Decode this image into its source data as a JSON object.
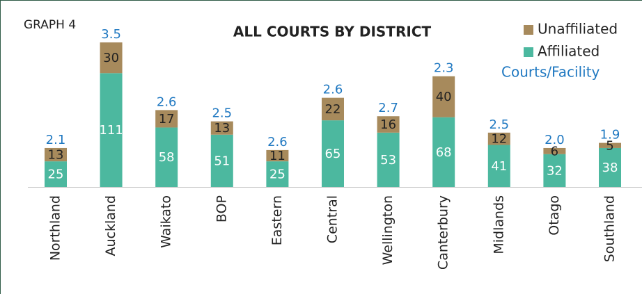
{
  "chart_data": {
    "type": "stacked-bar",
    "title": "ALL COURTS BY DISTRICT",
    "label": "GRAPH 4",
    "categories": [
      "Northland",
      "Auckland",
      "Waikato",
      "BOP",
      "Eastern",
      "Central",
      "Wellington",
      "Canterbury",
      "Midlands",
      "Otago",
      "Southland"
    ],
    "series": [
      {
        "name": "Affiliated",
        "color": "#4cb89f",
        "values": [
          25,
          111,
          58,
          51,
          25,
          65,
          53,
          68,
          41,
          32,
          38
        ]
      },
      {
        "name": "Unaffiliated",
        "color": "#a78a5c",
        "values": [
          13,
          30,
          17,
          13,
          11,
          22,
          16,
          40,
          12,
          6,
          5
        ]
      }
    ],
    "ratio": {
      "name": "Courts/Facility",
      "color": "#1f78c1",
      "values": [
        2.1,
        3.5,
        2.6,
        2.5,
        2.6,
        2.6,
        2.7,
        2.3,
        2.5,
        2.0,
        1.9
      ],
      "value_labels": [
        "2.1",
        "3.5",
        "2.6",
        "2.5",
        "2.6",
        "2.6",
        "2.7",
        "2.3",
        "2.5",
        "2.0",
        "1.9"
      ]
    }
  }
}
